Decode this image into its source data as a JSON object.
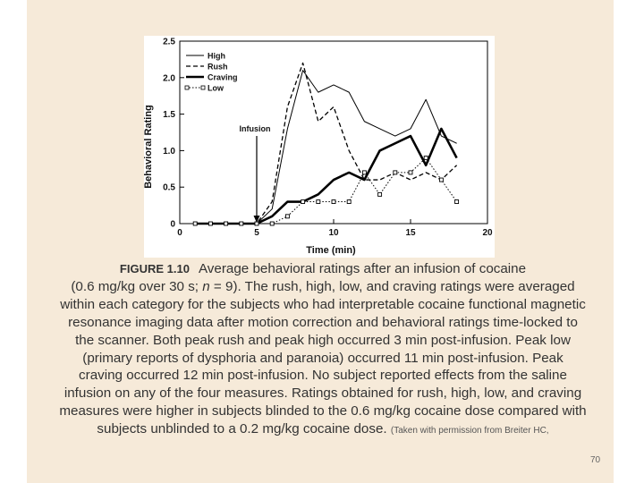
{
  "slide": {
    "page_number": "70",
    "caption": {
      "label": "FIGURE 1.10",
      "line1": "Average behavioral ratings after an infusion of cocaine",
      "line2_pre": "(0.6 mg/kg over 30 s; ",
      "n_var": "n",
      "line2_post": " = 9). The rush, high, low, and craving ratings were",
      "body": "averaged within each category for the subjects who had interpretable cocaine functional magnetic resonance imaging data after motion correction and behavioral ratings time-locked to the scanner. Both peak rush and peak high occurred 3 min post-infusion. Peak low (primary reports of dysphoria and paranoia) occurred 11 min post-infusion. Peak craving occurred 12 min post-infusion. No subject reported effects from the saline infusion on any of the four measures. Ratings obtained for rush, high, low, and craving measures were higher in subjects blinded to the 0.6 mg/kg cocaine dose compared with subjects unblinded to a 0.2 mg/kg cocaine dose.",
      "note": "(Taken with permission from Breiter HC,"
    }
  },
  "chart_data": {
    "type": "line",
    "xlabel": "Time (min)",
    "ylabel": "Behavioral Rating",
    "xlim": [
      0,
      20
    ],
    "ylim": [
      0,
      2.5
    ],
    "xticks": [
      0,
      5,
      10,
      15,
      20
    ],
    "yticks": [
      0,
      0.5,
      1.0,
      1.5,
      2.0,
      2.5
    ],
    "xtick_labels": [
      "0",
      "5",
      "10",
      "15",
      "20"
    ],
    "ytick_labels": [
      "0",
      "0.5",
      "1.0",
      "1.5",
      "2.0",
      "2.5"
    ],
    "legend_position": "top-left",
    "annotation": {
      "text": "Infusion",
      "x": 5
    },
    "x": [
      1,
      2,
      3,
      4,
      5,
      6,
      7,
      8,
      9,
      10,
      11,
      12,
      13,
      14,
      15,
      16,
      17,
      18
    ],
    "series": [
      {
        "name": "High",
        "style": "thin-solid",
        "values": [
          0,
          0,
          0,
          0,
          0,
          0.2,
          1.3,
          2.1,
          1.8,
          1.9,
          1.8,
          1.4,
          1.3,
          1.2,
          1.3,
          1.7,
          1.2,
          1.1
        ]
      },
      {
        "name": "Rush",
        "style": "dashed",
        "values": [
          0,
          0,
          0,
          0,
          0,
          0.3,
          1.6,
          2.2,
          1.4,
          1.6,
          1.0,
          0.6,
          0.6,
          0.7,
          0.6,
          0.7,
          0.6,
          0.8
        ]
      },
      {
        "name": "Craving",
        "style": "thick-solid",
        "values": [
          0,
          0,
          0,
          0,
          0,
          0.1,
          0.3,
          0.3,
          0.4,
          0.6,
          0.7,
          0.6,
          1.0,
          1.1,
          1.2,
          0.8,
          1.3,
          0.9
        ]
      },
      {
        "name": "Low",
        "style": "dotted-open-square",
        "values": [
          0,
          0,
          0,
          0,
          0,
          0,
          0.1,
          0.3,
          0.3,
          0.3,
          0.3,
          0.7,
          0.4,
          0.7,
          0.7,
          0.9,
          0.6,
          0.3
        ]
      }
    ]
  }
}
